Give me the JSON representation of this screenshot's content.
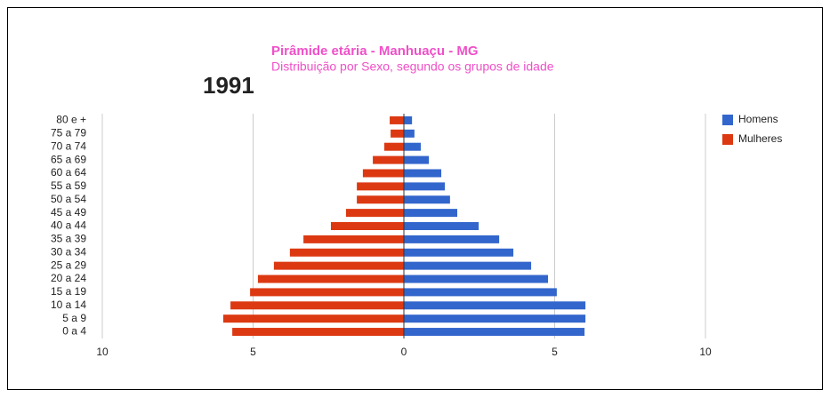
{
  "chart_data": {
    "type": "pyramid",
    "year": "1991",
    "title": "Pirâmide etária - Manhuaçu - MG",
    "subtitle": "Distribuição por Sexo, segundo os grupos de idade",
    "categories": [
      "80 e +",
      "75 a 79",
      "70 a 74",
      "65 a 69",
      "60 a 64",
      "55 a 59",
      "50 a 54",
      "45 a 49",
      "40 a 44",
      "35 a 39",
      "30 a 34",
      "25 a 29",
      "20 a 24",
      "15 a 19",
      "10 a 14",
      "5 a 9",
      "0 a 4"
    ],
    "series": [
      {
        "name": "Homens",
        "color": "#3366cc",
        "values": [
          0.27,
          0.35,
          0.56,
          0.83,
          1.24,
          1.36,
          1.53,
          1.77,
          2.48,
          3.16,
          3.63,
          4.22,
          4.78,
          5.07,
          6.02,
          6.02,
          5.99
        ]
      },
      {
        "name": "Mulheres",
        "color": "#dc3912",
        "values": [
          -0.47,
          -0.44,
          -0.65,
          -1.03,
          -1.36,
          -1.56,
          -1.56,
          -1.92,
          -2.42,
          -3.33,
          -3.78,
          -4.31,
          -4.84,
          -5.1,
          -5.75,
          -5.99,
          -5.69
        ]
      }
    ],
    "xlim": [
      -10,
      10
    ],
    "xticks": [
      {
        "value": -10,
        "label": "10"
      },
      {
        "value": -5,
        "label": "5"
      },
      0,
      5,
      10
    ],
    "grid": true,
    "legend": "right"
  }
}
